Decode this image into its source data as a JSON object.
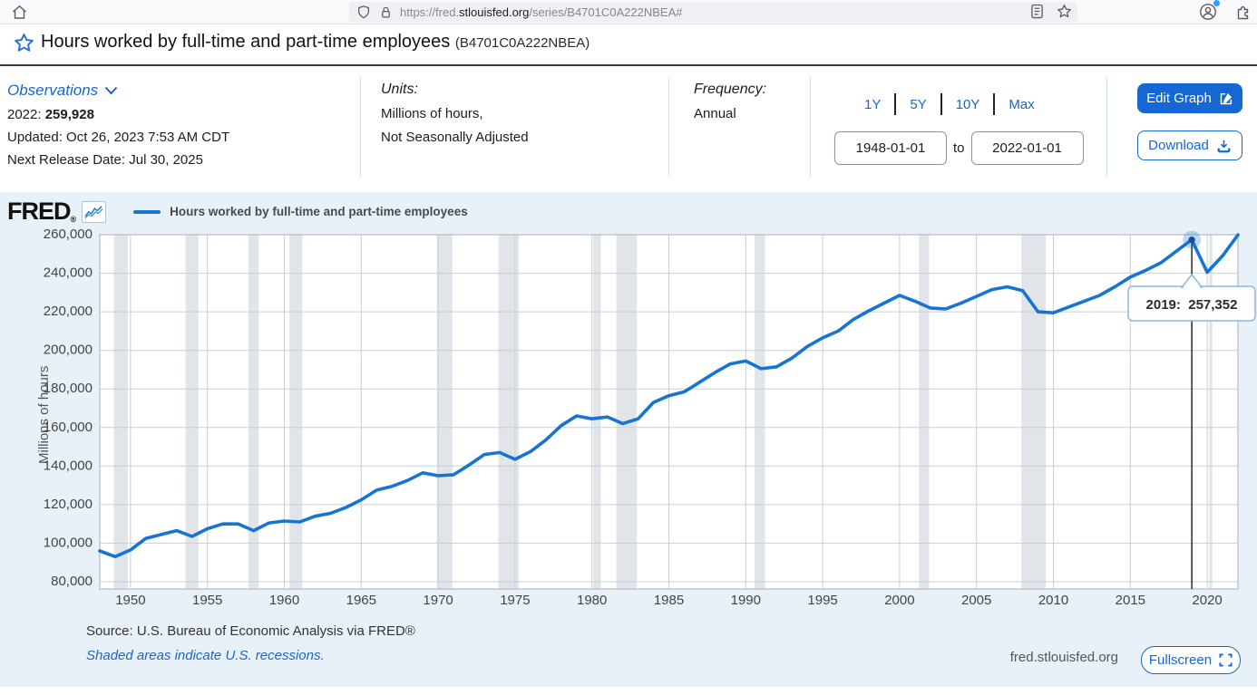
{
  "browser": {
    "url_prefix": "https://fred.",
    "url_domain": "stlouisfed.org",
    "url_path": "/series/B4701C0A222NBEA#"
  },
  "header": {
    "title": "Hours worked by full-time and part-time employees",
    "series_id": "(B4701C0A222NBEA)"
  },
  "meta": {
    "observations": {
      "label": "Observations",
      "latest_prefix": "2022: ",
      "latest_value": "259,928",
      "updated": "Updated: Oct 26, 2023 7:53 AM CDT",
      "next_release": "Next Release Date: Jul 30, 2025"
    },
    "units": {
      "label": "Units:",
      "line1": "Millions of hours,",
      "line2": "Not Seasonally Adjusted"
    },
    "frequency": {
      "label": "Frequency:",
      "value": "Annual"
    },
    "range": {
      "presets": [
        "1Y",
        "5Y",
        "10Y",
        "Max"
      ],
      "start_date": "1948-01-01",
      "to_label": "to",
      "end_date": "2022-01-01"
    },
    "actions": {
      "edit_graph": "Edit Graph",
      "download": "Download"
    }
  },
  "chart": {
    "brand": "FRED",
    "legend": "Hours worked by full-time and part-time employees",
    "source": "Source: U.S. Bureau of Economic Analysis via FRED®",
    "recession_note": "Shaded areas indicate U.S. recessions.",
    "site": "fred.stlouisfed.org",
    "fullscreen_label": "Fullscreen"
  },
  "tooltip": {
    "label": "2019:",
    "value": "257,352"
  },
  "colors": {
    "line": "#1574d4",
    "accent": "#1667d3",
    "link": "#1a66c6",
    "chart_bg": "#e9f1f8",
    "recession_band": "#e1e5e9",
    "gridline": "#c9cfd6",
    "plot_border": "#b4bbc3"
  },
  "chart_data": {
    "type": "line",
    "title": "Hours worked by full-time and part-time employees",
    "xlabel": "",
    "ylabel": "Millions of hours",
    "ylim": [
      80000,
      260000
    ],
    "xlim": [
      1948,
      2022
    ],
    "grid": true,
    "legend_position": "top-left",
    "xticks": [
      1950,
      1955,
      1960,
      1965,
      1970,
      1975,
      1980,
      1985,
      1990,
      1995,
      2000,
      2005,
      2010,
      2015,
      2020
    ],
    "yticks": [
      80000,
      100000,
      120000,
      140000,
      160000,
      180000,
      200000,
      220000,
      240000,
      260000
    ],
    "x": [
      1948,
      1949,
      1950,
      1951,
      1952,
      1953,
      1954,
      1955,
      1956,
      1957,
      1958,
      1959,
      1960,
      1961,
      1962,
      1963,
      1964,
      1965,
      1966,
      1967,
      1968,
      1969,
      1970,
      1971,
      1972,
      1973,
      1974,
      1975,
      1976,
      1977,
      1978,
      1979,
      1980,
      1981,
      1982,
      1983,
      1984,
      1985,
      1986,
      1987,
      1988,
      1989,
      1990,
      1991,
      1992,
      1993,
      1994,
      1995,
      1996,
      1997,
      1998,
      1999,
      2000,
      2001,
      2002,
      2003,
      2004,
      2005,
      2006,
      2007,
      2008,
      2009,
      2010,
      2011,
      2012,
      2013,
      2014,
      2015,
      2016,
      2017,
      2018,
      2019,
      2020,
      2021,
      2022
    ],
    "values": [
      96000,
      93000,
      96500,
      102500,
      104500,
      106500,
      103500,
      107500,
      110000,
      110000,
      106500,
      110500,
      111500,
      111000,
      114000,
      115500,
      118500,
      122500,
      127500,
      129500,
      132500,
      136500,
      135000,
      135500,
      140500,
      146000,
      147000,
      143500,
      147500,
      153500,
      161000,
      166000,
      164500,
      165500,
      162000,
      164500,
      173000,
      176500,
      178500,
      183500,
      188500,
      193000,
      194500,
      190500,
      191500,
      196000,
      202000,
      206500,
      210000,
      216000,
      220500,
      224500,
      228500,
      225500,
      222000,
      221500,
      224500,
      228000,
      231500,
      233000,
      231000,
      220000,
      219500,
      222500,
      225500,
      228500,
      233000,
      238000,
      241500,
      245500,
      251500,
      257352,
      240500,
      249000,
      259928
    ],
    "recessions": [
      [
        1948.92,
        1949.83
      ],
      [
        1953.58,
        1954.42
      ],
      [
        1957.67,
        1958.33
      ],
      [
        1960.33,
        1961.17
      ],
      [
        1969.92,
        1970.92
      ],
      [
        1973.92,
        1975.25
      ],
      [
        1980.08,
        1980.58
      ],
      [
        1981.58,
        1982.92
      ],
      [
        1990.58,
        1991.25
      ],
      [
        2001.25,
        2001.92
      ],
      [
        2007.92,
        2009.5
      ],
      [
        2020.13,
        2020.33
      ]
    ],
    "highlight": {
      "x": 2019,
      "y": 257352
    }
  }
}
